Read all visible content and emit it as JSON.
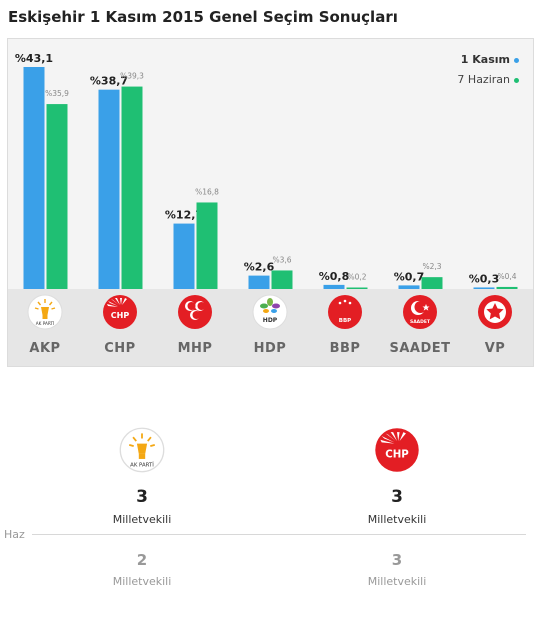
{
  "title": "Eskişehir 1 Kasım 2015 Genel Seçim Sonuçları",
  "legend": {
    "nov": "1 Kasım",
    "jun": "7 Haziran"
  },
  "colors": {
    "nov": "#3aa0e8",
    "jun": "#1fbf73"
  },
  "chart_data": {
    "type": "bar",
    "categories": [
      "AKP",
      "CHP",
      "MHP",
      "HDP",
      "BBP",
      "SAADET",
      "VP"
    ],
    "series": [
      {
        "name": "1 Kasım",
        "values": [
          43.1,
          38.7,
          12.7,
          2.6,
          0.8,
          0.7,
          0.3
        ],
        "labels": [
          "%43,1",
          "%38,7",
          "%12,7",
          "%2,6",
          "%0,8",
          "%0,7",
          "%0,3"
        ]
      },
      {
        "name": "7 Haziran",
        "values": [
          35.9,
          39.3,
          16.8,
          3.6,
          0.2,
          2.3,
          0.4
        ],
        "labels": [
          "%35,9",
          "%39,3",
          "%16,8",
          "%3,6",
          "%0,2",
          "%2,3",
          "%0,4"
        ]
      }
    ],
    "ylim": [
      0,
      43.1
    ],
    "grid": false,
    "legend_position": "top-right"
  },
  "parties": [
    {
      "name": "AKP",
      "logo": "ak-parti-logo-icon",
      "logo_text": "AK PARTİ"
    },
    {
      "name": "CHP",
      "logo": "chp-logo-icon",
      "logo_text": "CHP"
    },
    {
      "name": "MHP",
      "logo": "mhp-logo-icon",
      "logo_text": ""
    },
    {
      "name": "HDP",
      "logo": "hdp-logo-icon",
      "logo_text": "HDP"
    },
    {
      "name": "BBP",
      "logo": "bbp-logo-icon",
      "logo_text": "BBP"
    },
    {
      "name": "SAADET",
      "logo": "saadet-logo-icon",
      "logo_text": "SAADET"
    },
    {
      "name": "VP",
      "logo": "vp-logo-icon",
      "logo_text": ""
    }
  ],
  "seats": {
    "current": [
      {
        "party_logo_text": "AK PARTİ",
        "count": "3",
        "label": "Milletvekili"
      },
      {
        "party_logo_text": "CHP",
        "count": "3",
        "label": "Milletvekili"
      }
    ],
    "previous_label": "Haz",
    "previous": [
      {
        "count": "2",
        "label": "Milletvekili"
      },
      {
        "count": "3",
        "label": "Milletvekili"
      }
    ]
  }
}
